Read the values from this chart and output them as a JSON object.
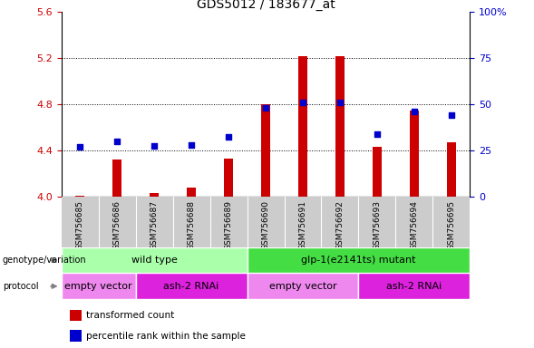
{
  "title": "GDS5012 / 183677_at",
  "samples": [
    "GSM756685",
    "GSM756686",
    "GSM756687",
    "GSM756688",
    "GSM756689",
    "GSM756690",
    "GSM756691",
    "GSM756692",
    "GSM756693",
    "GSM756694",
    "GSM756695"
  ],
  "red_values": [
    4.01,
    4.32,
    4.03,
    4.08,
    4.33,
    4.8,
    5.22,
    5.22,
    4.43,
    4.75,
    4.47
  ],
  "blue_values": [
    4.43,
    4.48,
    4.44,
    4.45,
    4.52,
    4.77,
    4.82,
    4.82,
    4.54,
    4.74,
    4.71
  ],
  "ylim_left": [
    4.0,
    5.6
  ],
  "ylim_right": [
    0,
    100
  ],
  "yticks_left": [
    4.0,
    4.4,
    4.8,
    5.2,
    5.6
  ],
  "yticks_right": [
    0,
    25,
    50,
    75,
    100
  ],
  "bar_color": "#cc0000",
  "dot_color": "#0000cc",
  "left_tick_color": "#cc0000",
  "right_tick_color": "#0000cc",
  "grid_yticks": [
    4.4,
    4.8,
    5.2
  ],
  "genotype_labels": [
    "wild type",
    "glp-1(e2141ts) mutant"
  ],
  "genotype_light": "#aaffaa",
  "genotype_dark": "#44dd44",
  "protocol_light": "#ee88ee",
  "protocol_dark": "#dd22dd",
  "protocol_regions": [
    {
      "start": 0,
      "end": 1,
      "light": true,
      "label": "empty vector"
    },
    {
      "start": 2,
      "end": 4,
      "light": false,
      "label": "ash-2 RNAi"
    },
    {
      "start": 5,
      "end": 7,
      "light": true,
      "label": "empty vector"
    },
    {
      "start": 8,
      "end": 10,
      "light": false,
      "label": "ash-2 RNAi"
    }
  ],
  "bar_width": 0.25,
  "sample_box_color": "#cccccc",
  "legend_red_label": "transformed count",
  "legend_blue_label": "percentile rank within the sample"
}
